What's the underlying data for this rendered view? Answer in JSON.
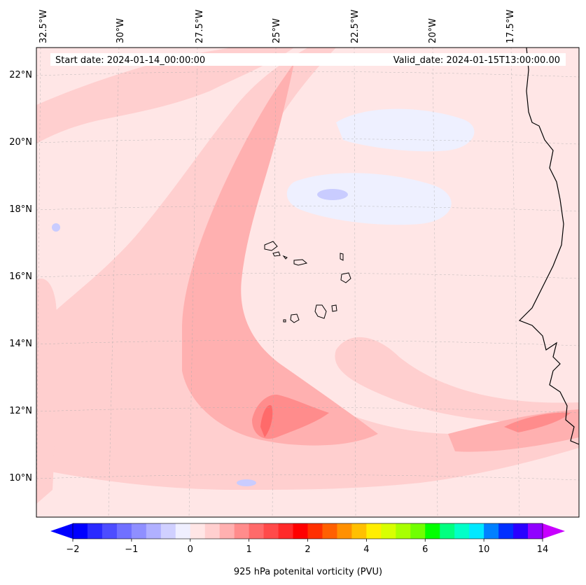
{
  "header": {
    "start_date": "Start date: 2024-01-14_00:00:00",
    "valid_date": "Valid_date: 2024-01-15T13:00:00.00"
  },
  "map": {
    "lon_labels": [
      "32.5°W",
      "30°W",
      "27.5°W",
      "25°W",
      "22.5°W",
      "20°W",
      "17.5°W"
    ],
    "lat_labels": [
      "22°N",
      "20°N",
      "18°N",
      "16°N",
      "14°N",
      "12°N",
      "10°N"
    ],
    "land_color": "#ffe6e6",
    "field_colors": {
      "very_light": "#ffe6e6",
      "light": "#ffcfcf",
      "medium": "#ffb0b0",
      "strong": "#ff8c8c",
      "strongest": "#ff6a6a",
      "negative_light": "#eef0ff",
      "negative": "#c9ccff"
    }
  },
  "colorbar": {
    "tick_labels": [
      "−2",
      "−1",
      "0",
      "1",
      "2",
      "4",
      "6",
      "10",
      "14"
    ],
    "label": "925 hPa potenital vorticity (PVU)",
    "colors": [
      "#0000ff",
      "#2a2aff",
      "#4d4dff",
      "#7070ff",
      "#8f8fff",
      "#b0b0ff",
      "#d0d0ff",
      "#efefff",
      "#ffe6e6",
      "#ffcfcf",
      "#ffb0b0",
      "#ff8c8c",
      "#ff6a6a",
      "#ff4a4a",
      "#ff2a2a",
      "#ff0000",
      "#ff3000",
      "#ff6000",
      "#ff9000",
      "#ffc000",
      "#ffee00",
      "#d8ff00",
      "#a8ff00",
      "#70ff00",
      "#00ff00",
      "#00ff80",
      "#00ffc8",
      "#00e8ff",
      "#0080ff",
      "#0030ff",
      "#2a00ff",
      "#9000ff"
    ],
    "under_color": "#0000ff",
    "over_color": "#c800ff"
  }
}
